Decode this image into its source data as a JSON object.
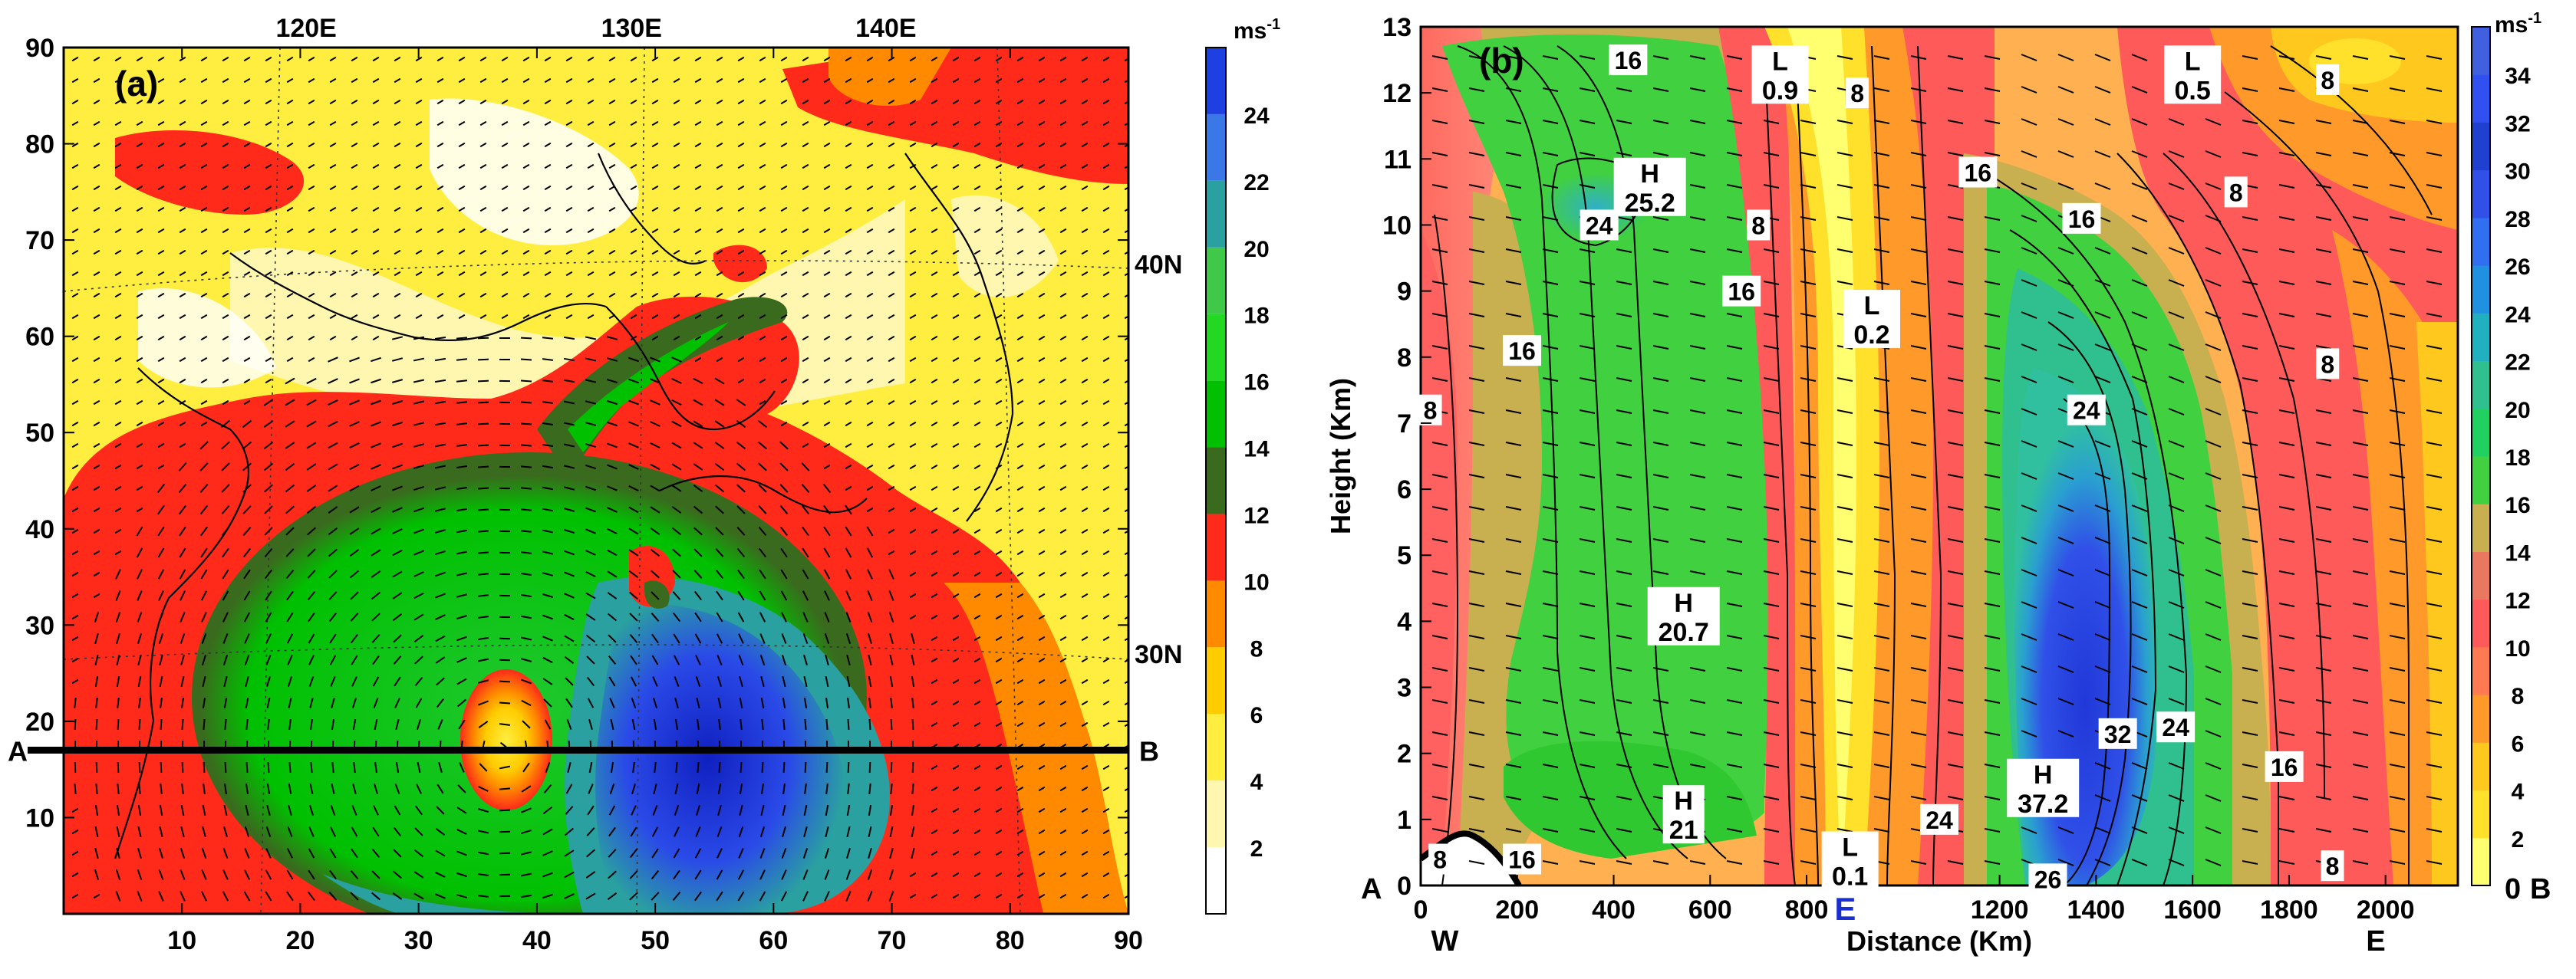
{
  "chart_data": [
    {
      "panel": "(a)",
      "type": "heatmap",
      "description_type": "map wind speed shaded with wind vectors",
      "x_ticks": [
        "10",
        "20",
        "30",
        "40",
        "50",
        "60",
        "70",
        "80",
        "90"
      ],
      "y_ticks": [
        "10",
        "20",
        "30",
        "40",
        "50",
        "60",
        "70",
        "80",
        "90"
      ],
      "xlim": [
        0,
        90
      ],
      "ylim": [
        0,
        90
      ],
      "lon_labels": [
        "120E",
        "130E",
        "140E"
      ],
      "lat_labels": [
        "40N",
        "30N"
      ],
      "section_line": {
        "start_label": "A",
        "end_label": "B",
        "y": 17
      },
      "colorbar": {
        "unit": "ms",
        "unit_sup": "-1",
        "ticks": [
          "2",
          "4",
          "6",
          "8",
          "10",
          "12",
          "14",
          "16",
          "18",
          "20",
          "22",
          "24"
        ],
        "levels": [
          0,
          2,
          4,
          6,
          8,
          10,
          12,
          14,
          16,
          18,
          20,
          22,
          24,
          26
        ],
        "colors": [
          "#ffffff",
          "#fff7b0",
          "#ffee40",
          "#ffcc00",
          "#ff8a00",
          "#ff2a1a",
          "#3a6a1e",
          "#00c000",
          "#22d822",
          "#40c848",
          "#2aa0a0",
          "#3a78e8",
          "#1e40e0",
          "#1020c0"
        ]
      },
      "storm_center": {
        "x": 37,
        "y": 17
      }
    },
    {
      "panel": "(b)",
      "type": "heatmap",
      "description_type": "vertical cross-section of wind speed with contours",
      "xlabel": "Distance (Km)",
      "ylabel": "Height (Km)",
      "x_ticks": [
        "0",
        "200",
        "400",
        "600",
        "800",
        "1200",
        "1400",
        "1600",
        "1800",
        "2000"
      ],
      "y_ticks": [
        "0",
        "1",
        "2",
        "3",
        "4",
        "5",
        "6",
        "7",
        "8",
        "9",
        "10",
        "11",
        "12",
        "13"
      ],
      "xlim": [
        0,
        2150
      ],
      "ylim": [
        0,
        13
      ],
      "bottom_labels": {
        "left": "W",
        "center": "E",
        "right": "E",
        "corner_left": "A",
        "corner_right": "B"
      },
      "colorbar": {
        "unit": "ms",
        "unit_sup": "-1",
        "ticks": [
          "0",
          "2",
          "4",
          "6",
          "8",
          "10",
          "12",
          "14",
          "16",
          "18",
          "20",
          "22",
          "24",
          "26",
          "28",
          "30",
          "32",
          "34"
        ],
        "colors": [
          "#ffff70",
          "#ffe02a",
          "#ffc81e",
          "#ff9a2a",
          "#ff7a50",
          "#ff5a5a",
          "#e87860",
          "#c8b050",
          "#40d040",
          "#20d060",
          "#30c090",
          "#20b0c0",
          "#2090e0",
          "#3070f0",
          "#3050e8",
          "#2040d0",
          "#3050f0",
          "#4060e0"
        ]
      },
      "annotations": [
        {
          "text": "H\n25.2",
          "x": 475,
          "y": 10.6
        },
        {
          "text": "H\n20.7",
          "x": 545,
          "y": 4.1
        },
        {
          "text": "H\n21",
          "x": 545,
          "y": 1.1
        },
        {
          "text": "H\n37.2",
          "x": 1290,
          "y": 1.5
        },
        {
          "text": "L\n0.9",
          "x": 745,
          "y": 12.3
        },
        {
          "text": "L\n0.2",
          "x": 935,
          "y": 8.6
        },
        {
          "text": "L\n0.1",
          "x": 890,
          "y": 0.4
        },
        {
          "text": "L\n0.5",
          "x": 1600,
          "y": 12.3
        }
      ],
      "contour_labels": [
        {
          "text": "16",
          "x": 430,
          "y": 12.5
        },
        {
          "text": "8",
          "x": 905,
          "y": 12.0
        },
        {
          "text": "8",
          "x": 1880,
          "y": 12.2
        },
        {
          "text": "16",
          "x": 1155,
          "y": 10.8
        },
        {
          "text": "16",
          "x": 1370,
          "y": 10.1
        },
        {
          "text": "8",
          "x": 1690,
          "y": 10.5
        },
        {
          "text": "24",
          "x": 370,
          "y": 10.0
        },
        {
          "text": "8",
          "x": 700,
          "y": 10.0
        },
        {
          "text": "16",
          "x": 665,
          "y": 9.0
        },
        {
          "text": "16",
          "x": 210,
          "y": 8.1
        },
        {
          "text": "8",
          "x": 1880,
          "y": 7.9
        },
        {
          "text": "24",
          "x": 1380,
          "y": 7.2
        },
        {
          "text": "8",
          "x": 20,
          "y": 7.2
        },
        {
          "text": "32",
          "x": 1445,
          "y": 2.3
        },
        {
          "text": "24",
          "x": 1565,
          "y": 2.4
        },
        {
          "text": "16",
          "x": 1790,
          "y": 1.8
        },
        {
          "text": "24",
          "x": 1075,
          "y": 1.0
        },
        {
          "text": "26",
          "x": 1300,
          "y": 0.1
        },
        {
          "text": "8",
          "x": 40,
          "y": 0.4
        },
        {
          "text": "16",
          "x": 210,
          "y": 0.4
        },
        {
          "text": "8",
          "x": 1890,
          "y": 0.3
        }
      ]
    }
  ]
}
